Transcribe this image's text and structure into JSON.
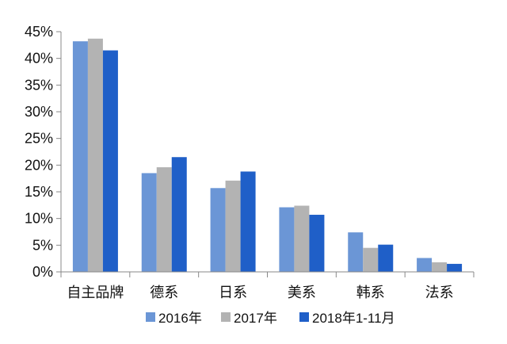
{
  "chart_data": {
    "type": "bar",
    "categories": [
      "自主品牌",
      "德系",
      "日系",
      "美系",
      "韩系",
      "法系"
    ],
    "series": [
      {
        "name": "2016年",
        "color": "#6b96d6",
        "values": [
          43.2,
          18.5,
          15.7,
          12.1,
          7.4,
          2.6
        ]
      },
      {
        "name": "2017年",
        "color": "#b3b3b3",
        "values": [
          43.7,
          19.6,
          17.1,
          12.4,
          4.5,
          1.8
        ]
      },
      {
        "name": "2018年1-11月",
        "color": "#1f5fc8",
        "values": [
          41.5,
          21.5,
          18.8,
          10.7,
          5.1,
          1.5
        ]
      }
    ],
    "yticks": [
      "0%",
      "5%",
      "10%",
      "15%",
      "20%",
      "25%",
      "30%",
      "35%",
      "40%",
      "45%"
    ],
    "ylim": [
      0,
      45
    ],
    "ytick_step": 5,
    "grid": false,
    "legend_position": "bottom",
    "axis_color": "#888888"
  }
}
